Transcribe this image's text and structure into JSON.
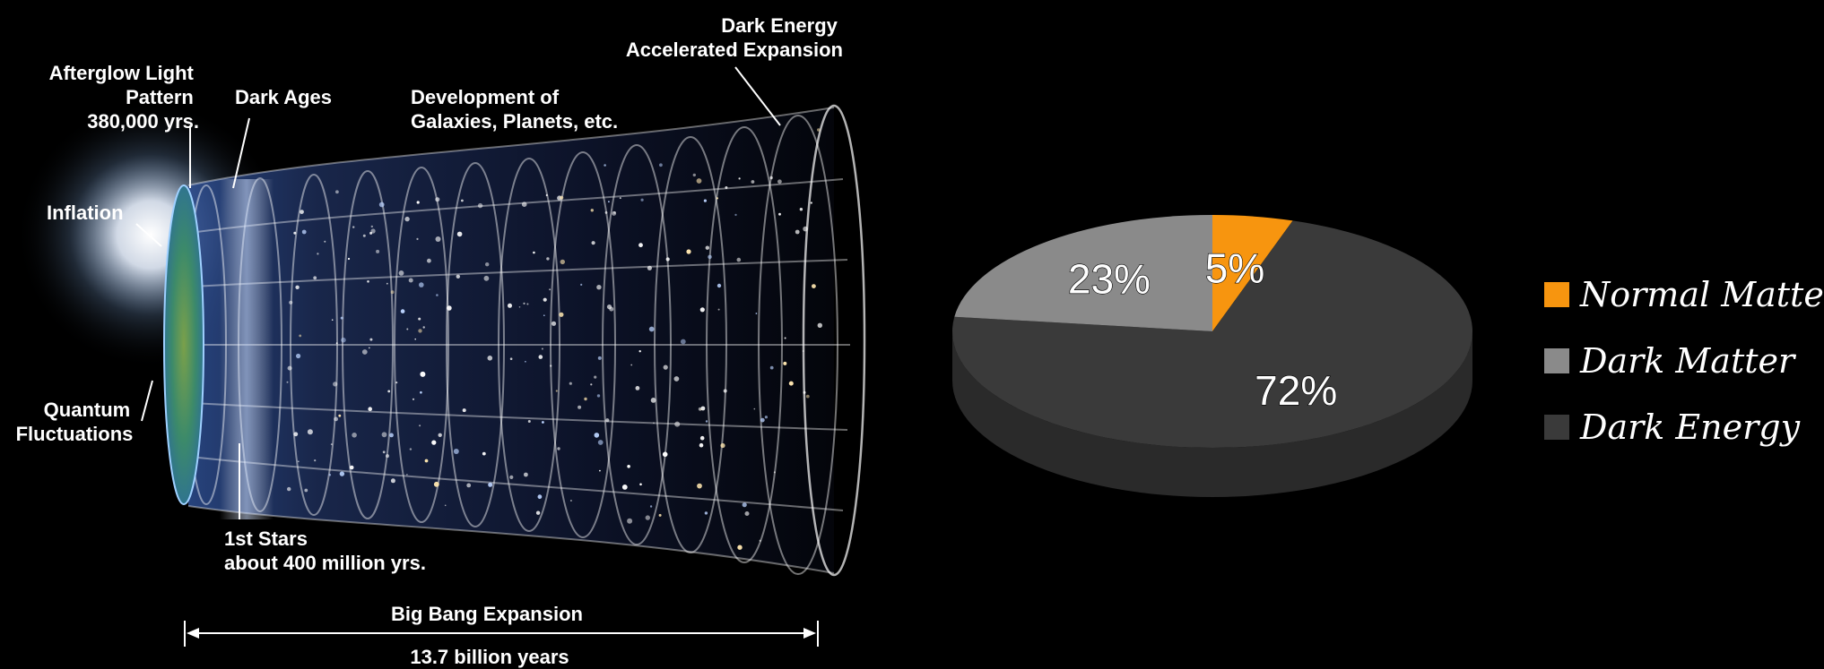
{
  "timeline": {
    "labels": {
      "dark_energy": [
        "Dark Energy",
        "Accelerated Expansion"
      ],
      "afterglow": [
        "Afterglow Light",
        "Pattern",
        "380,000 yrs."
      ],
      "dark_ages": "Dark Ages",
      "development": [
        "Development of",
        "Galaxies, Planets, etc."
      ],
      "inflation": "Inflation",
      "quantum": [
        "Quantum",
        "Fluctuations"
      ],
      "first_stars": [
        "1st Stars",
        "about 400 million yrs."
      ]
    },
    "expansion": {
      "title": "Big Bang Expansion",
      "duration": "13.7 billion years"
    }
  },
  "chart_data": {
    "type": "pie",
    "slices": [
      {
        "label": "Normal Matter",
        "value": 5,
        "value_label": "5%",
        "color": "#f7950f"
      },
      {
        "label": "Dark Matter",
        "value": 23,
        "value_label": "23%",
        "color": "#8a8a8a"
      },
      {
        "label": "Dark Energy",
        "value": 72,
        "value_label": "72%",
        "color": "#3a3a3a"
      }
    ],
    "style": "3d",
    "legend_position": "right"
  }
}
